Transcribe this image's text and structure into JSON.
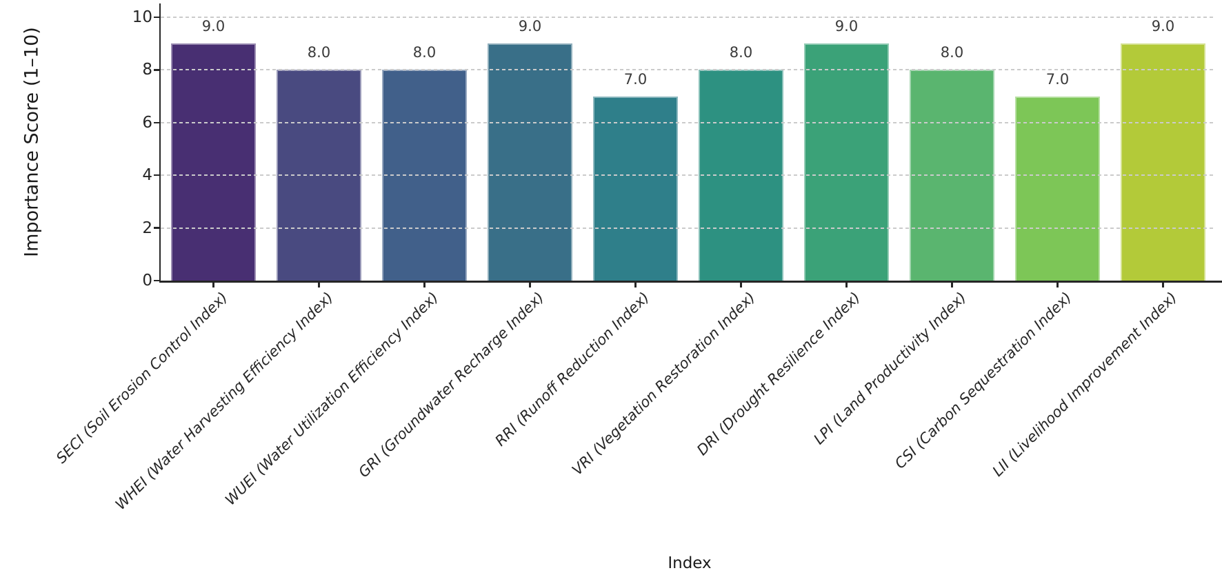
{
  "chart_data": {
    "type": "bar",
    "title": "",
    "xlabel": "Index",
    "ylabel": "Importance Score (1–10)",
    "categories": [
      "SECI (Soil Erosion Control Index)",
      "WHEI (Water Harvesting Efficiency Index)",
      "WUEI (Water Utilization Efficiency Index)",
      "GRI (Groundwater Recharge Index)",
      "RRI (Runoff Reduction Index)",
      "VRI (Vegetation Restoration Index)",
      "DRI (Drought Resilience Index)",
      "LPI (Land Productivity Index)",
      "CSI (Carbon Sequestration Index)",
      "LII (Livelihood Improvement Index)"
    ],
    "values": [
      9.0,
      8.0,
      8.0,
      9.0,
      7.0,
      8.0,
      9.0,
      8.0,
      7.0,
      9.0
    ],
    "value_labels": [
      "9.0",
      "8.0",
      "8.0",
      "9.0",
      "7.0",
      "8.0",
      "9.0",
      "8.0",
      "7.0",
      "9.0"
    ],
    "bar_colors": [
      "#482f72",
      "#494a80",
      "#41608a",
      "#396f88",
      "#2f7f8a",
      "#2d9181",
      "#3ba278",
      "#5ab56f",
      "#7dc657",
      "#b3ca39"
    ],
    "ylim": [
      0,
      10.5
    ],
    "yticks": [
      0,
      2,
      4,
      6,
      8,
      10
    ],
    "grid": "horizontal dashed, drawn over bars",
    "legend": "none",
    "colors": {
      "spine": "#262626",
      "gridline": "#cbcbcb",
      "tick_label": "#262626",
      "value_label": "#3a3a3a",
      "background": "#ffffff"
    }
  }
}
